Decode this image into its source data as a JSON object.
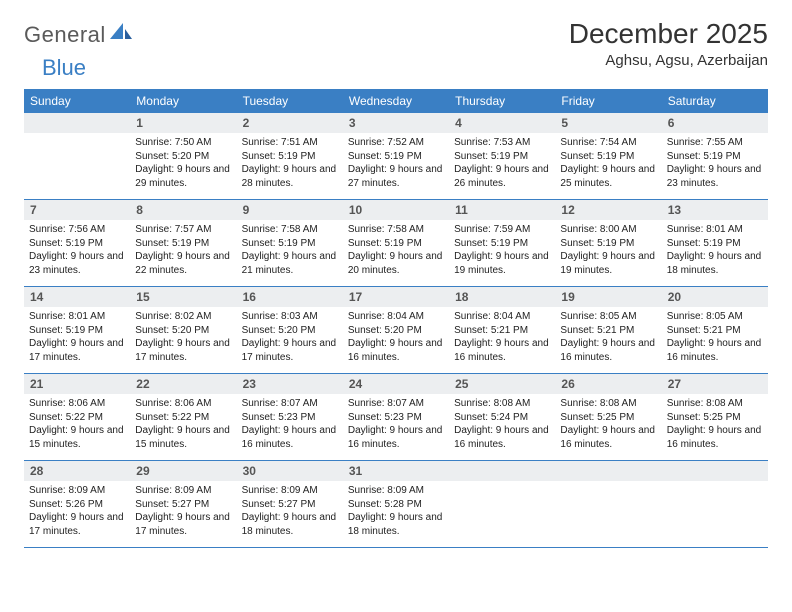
{
  "brand": {
    "text_a": "General",
    "text_b": "Blue"
  },
  "title": "December 2025",
  "location": "Aghsu, Agsu, Azerbaijan",
  "colors": {
    "header_bg": "#3a7fc4",
    "header_fg": "#ffffff",
    "daynum_bg": "#eceef0",
    "row_border": "#3a7fc4",
    "logo_gray": "#5a5a5a",
    "logo_blue": "#3a7fc4"
  },
  "weekdays": [
    "Sunday",
    "Monday",
    "Tuesday",
    "Wednesday",
    "Thursday",
    "Friday",
    "Saturday"
  ],
  "weeks": [
    [
      {
        "n": "",
        "sr": "",
        "ss": "",
        "dl": ""
      },
      {
        "n": "1",
        "sr": "7:50 AM",
        "ss": "5:20 PM",
        "dl": "9 hours and 29 minutes."
      },
      {
        "n": "2",
        "sr": "7:51 AM",
        "ss": "5:19 PM",
        "dl": "9 hours and 28 minutes."
      },
      {
        "n": "3",
        "sr": "7:52 AM",
        "ss": "5:19 PM",
        "dl": "9 hours and 27 minutes."
      },
      {
        "n": "4",
        "sr": "7:53 AM",
        "ss": "5:19 PM",
        "dl": "9 hours and 26 minutes."
      },
      {
        "n": "5",
        "sr": "7:54 AM",
        "ss": "5:19 PM",
        "dl": "9 hours and 25 minutes."
      },
      {
        "n": "6",
        "sr": "7:55 AM",
        "ss": "5:19 PM",
        "dl": "9 hours and 23 minutes."
      }
    ],
    [
      {
        "n": "7",
        "sr": "7:56 AM",
        "ss": "5:19 PM",
        "dl": "9 hours and 23 minutes."
      },
      {
        "n": "8",
        "sr": "7:57 AM",
        "ss": "5:19 PM",
        "dl": "9 hours and 22 minutes."
      },
      {
        "n": "9",
        "sr": "7:58 AM",
        "ss": "5:19 PM",
        "dl": "9 hours and 21 minutes."
      },
      {
        "n": "10",
        "sr": "7:58 AM",
        "ss": "5:19 PM",
        "dl": "9 hours and 20 minutes."
      },
      {
        "n": "11",
        "sr": "7:59 AM",
        "ss": "5:19 PM",
        "dl": "9 hours and 19 minutes."
      },
      {
        "n": "12",
        "sr": "8:00 AM",
        "ss": "5:19 PM",
        "dl": "9 hours and 19 minutes."
      },
      {
        "n": "13",
        "sr": "8:01 AM",
        "ss": "5:19 PM",
        "dl": "9 hours and 18 minutes."
      }
    ],
    [
      {
        "n": "14",
        "sr": "8:01 AM",
        "ss": "5:19 PM",
        "dl": "9 hours and 17 minutes."
      },
      {
        "n": "15",
        "sr": "8:02 AM",
        "ss": "5:20 PM",
        "dl": "9 hours and 17 minutes."
      },
      {
        "n": "16",
        "sr": "8:03 AM",
        "ss": "5:20 PM",
        "dl": "9 hours and 17 minutes."
      },
      {
        "n": "17",
        "sr": "8:04 AM",
        "ss": "5:20 PM",
        "dl": "9 hours and 16 minutes."
      },
      {
        "n": "18",
        "sr": "8:04 AM",
        "ss": "5:21 PM",
        "dl": "9 hours and 16 minutes."
      },
      {
        "n": "19",
        "sr": "8:05 AM",
        "ss": "5:21 PM",
        "dl": "9 hours and 16 minutes."
      },
      {
        "n": "20",
        "sr": "8:05 AM",
        "ss": "5:21 PM",
        "dl": "9 hours and 16 minutes."
      }
    ],
    [
      {
        "n": "21",
        "sr": "8:06 AM",
        "ss": "5:22 PM",
        "dl": "9 hours and 15 minutes."
      },
      {
        "n": "22",
        "sr": "8:06 AM",
        "ss": "5:22 PM",
        "dl": "9 hours and 15 minutes."
      },
      {
        "n": "23",
        "sr": "8:07 AM",
        "ss": "5:23 PM",
        "dl": "9 hours and 16 minutes."
      },
      {
        "n": "24",
        "sr": "8:07 AM",
        "ss": "5:23 PM",
        "dl": "9 hours and 16 minutes."
      },
      {
        "n": "25",
        "sr": "8:08 AM",
        "ss": "5:24 PM",
        "dl": "9 hours and 16 minutes."
      },
      {
        "n": "26",
        "sr": "8:08 AM",
        "ss": "5:25 PM",
        "dl": "9 hours and 16 minutes."
      },
      {
        "n": "27",
        "sr": "8:08 AM",
        "ss": "5:25 PM",
        "dl": "9 hours and 16 minutes."
      }
    ],
    [
      {
        "n": "28",
        "sr": "8:09 AM",
        "ss": "5:26 PM",
        "dl": "9 hours and 17 minutes."
      },
      {
        "n": "29",
        "sr": "8:09 AM",
        "ss": "5:27 PM",
        "dl": "9 hours and 17 minutes."
      },
      {
        "n": "30",
        "sr": "8:09 AM",
        "ss": "5:27 PM",
        "dl": "9 hours and 18 minutes."
      },
      {
        "n": "31",
        "sr": "8:09 AM",
        "ss": "5:28 PM",
        "dl": "9 hours and 18 minutes."
      },
      {
        "n": "",
        "sr": "",
        "ss": "",
        "dl": ""
      },
      {
        "n": "",
        "sr": "",
        "ss": "",
        "dl": ""
      },
      {
        "n": "",
        "sr": "",
        "ss": "",
        "dl": ""
      }
    ]
  ],
  "labels": {
    "sunrise": "Sunrise:",
    "sunset": "Sunset:",
    "daylight": "Daylight:"
  }
}
